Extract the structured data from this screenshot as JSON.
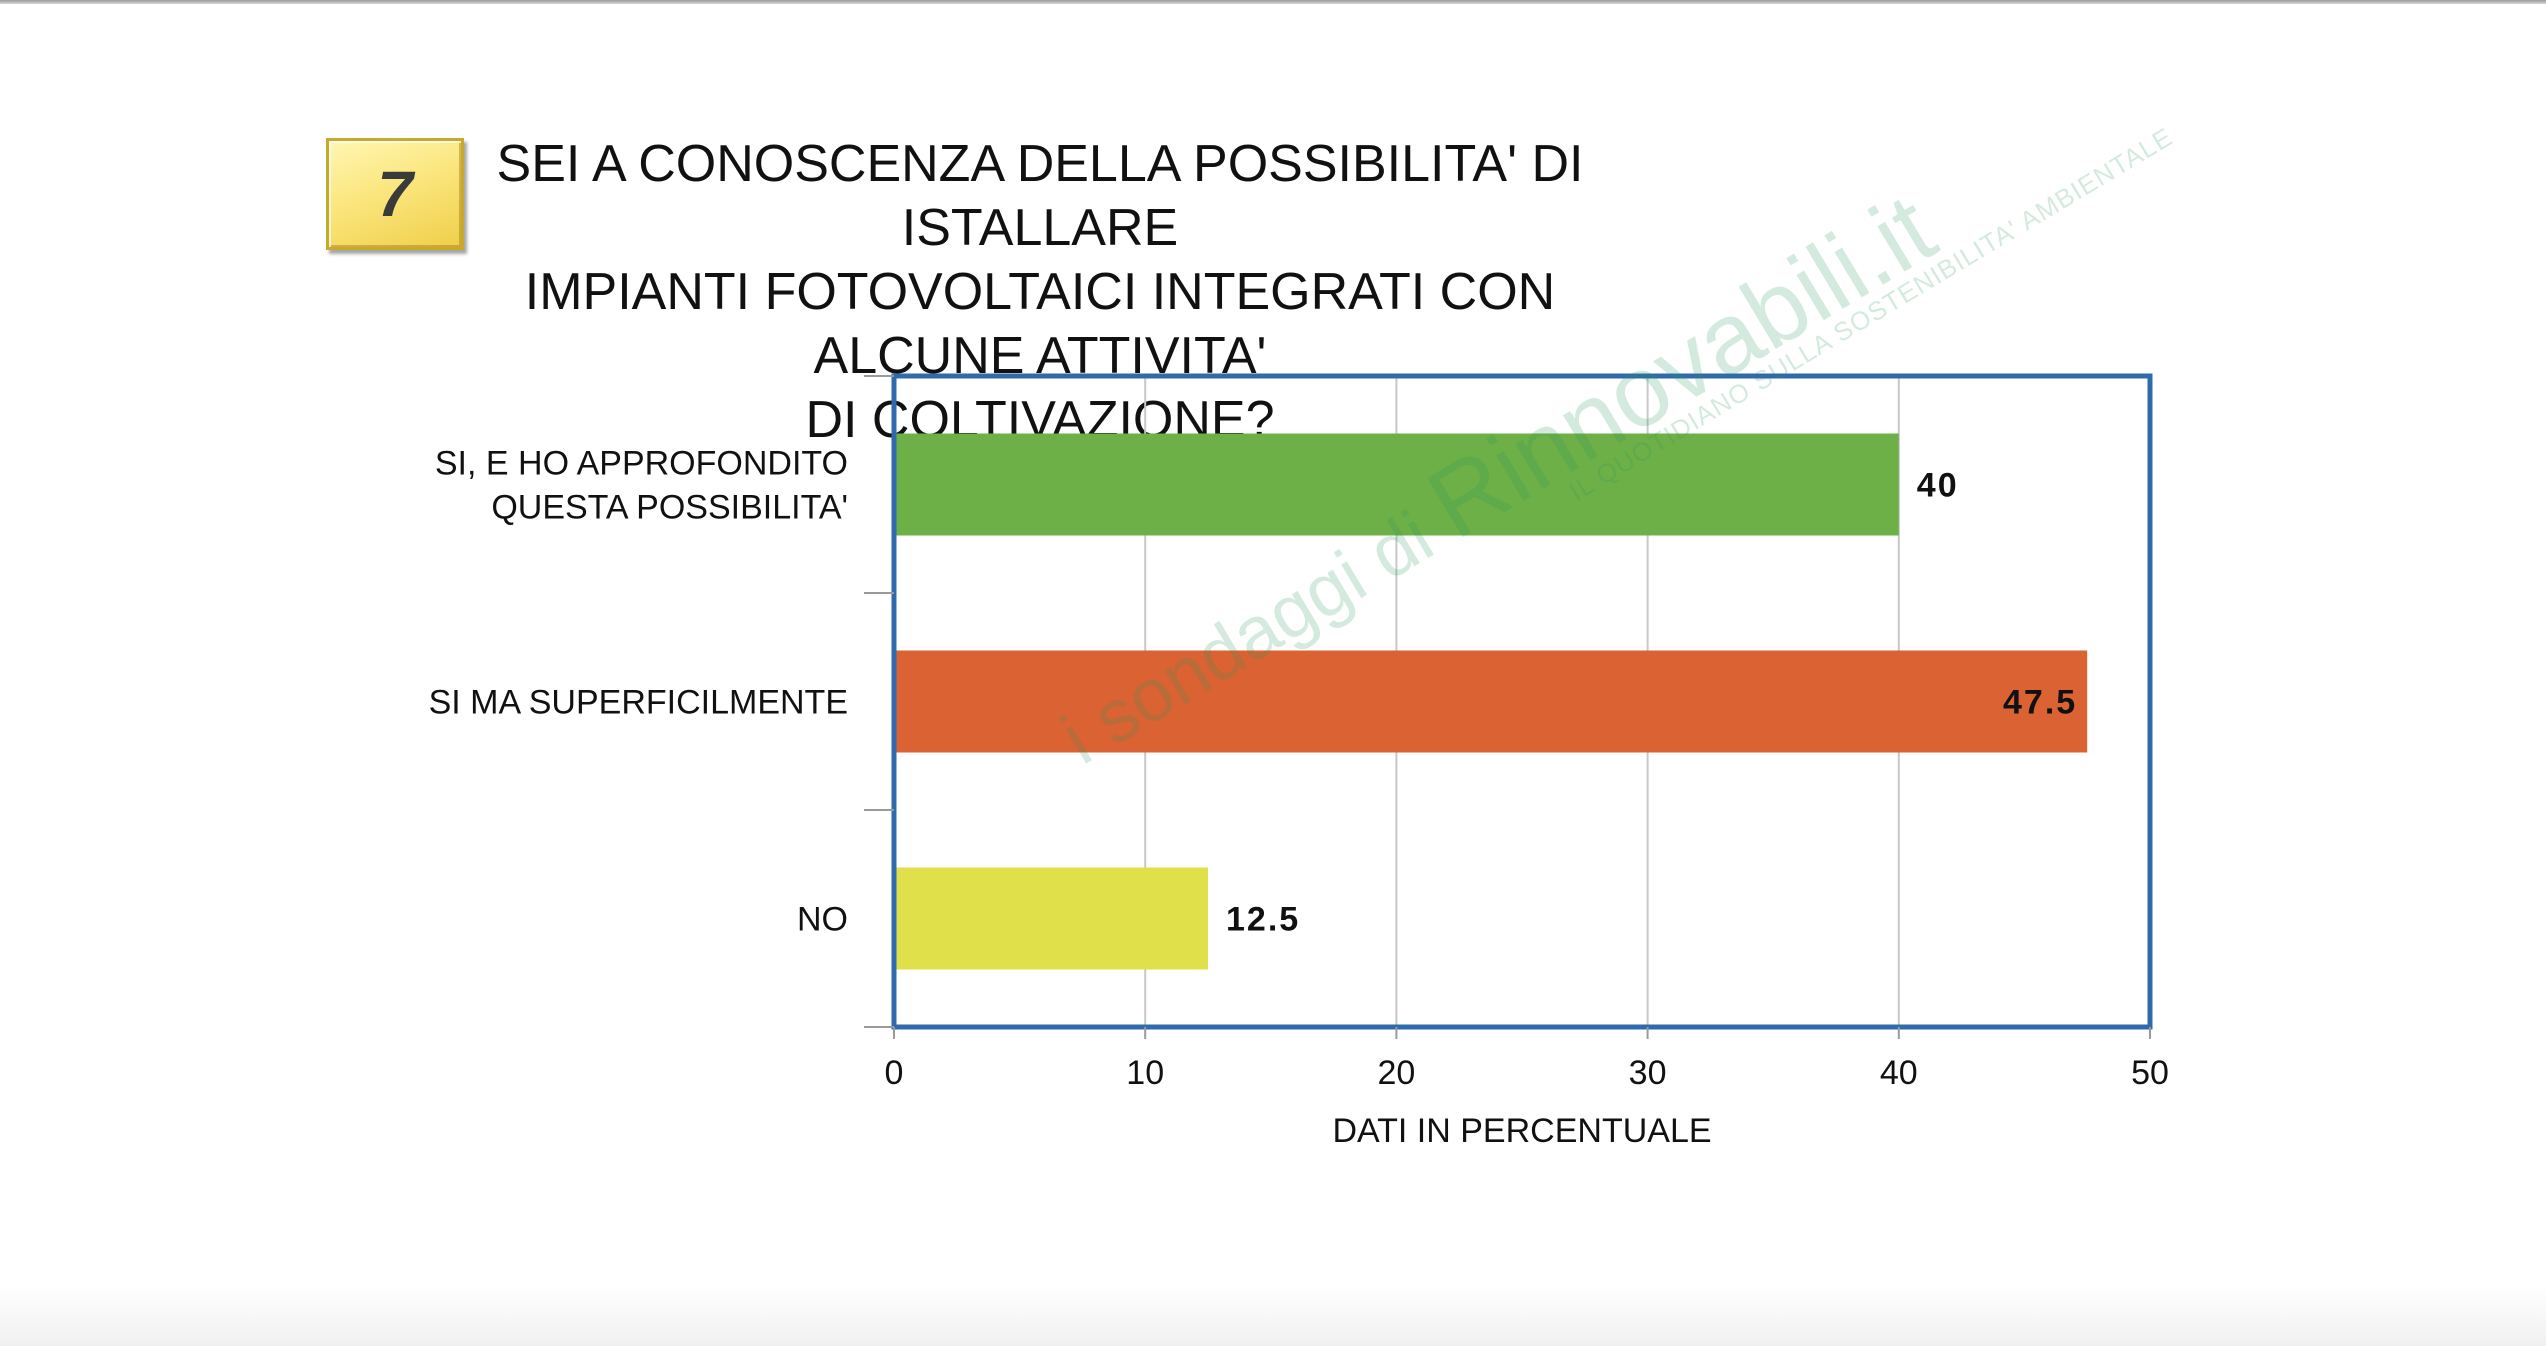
{
  "question_number": "7",
  "title": "SEI A CONOSCENZA DELLA POSSIBILITA' DI ISTALLARE\nIMPIANTI FOTOVOLTAICI INTEGRATI CON ALCUNE ATTIVITA'\nDI COLTIVAZIONE?",
  "watermark": {
    "prefix": "i sondaggi di ",
    "brand": "Rinnovabili.it",
    "tagline": "IL QUOTIDIANO SULLA SOSTENIBILITA' AMBIENTALE"
  },
  "chart_data": {
    "type": "bar",
    "orientation": "horizontal",
    "categories": [
      "SI, E HO APPROFONDITO\nQUESTA POSSIBILITA'",
      "SI MA SUPERFICILMENTE",
      "NO"
    ],
    "values": [
      40,
      47.5,
      12.5
    ],
    "value_labels": [
      "40",
      "47.5",
      "12.5"
    ],
    "colors": [
      "#6db048",
      "#db6232",
      "#dfe04a"
    ],
    "xlabel": "DATI IN PERCENTUALE",
    "ylabel": "",
    "xlim": [
      0,
      50
    ],
    "xticks": [
      0,
      10,
      20,
      30,
      40,
      50
    ],
    "grid": "vertical",
    "frame_color": "#2f6aad",
    "legend": "none"
  }
}
